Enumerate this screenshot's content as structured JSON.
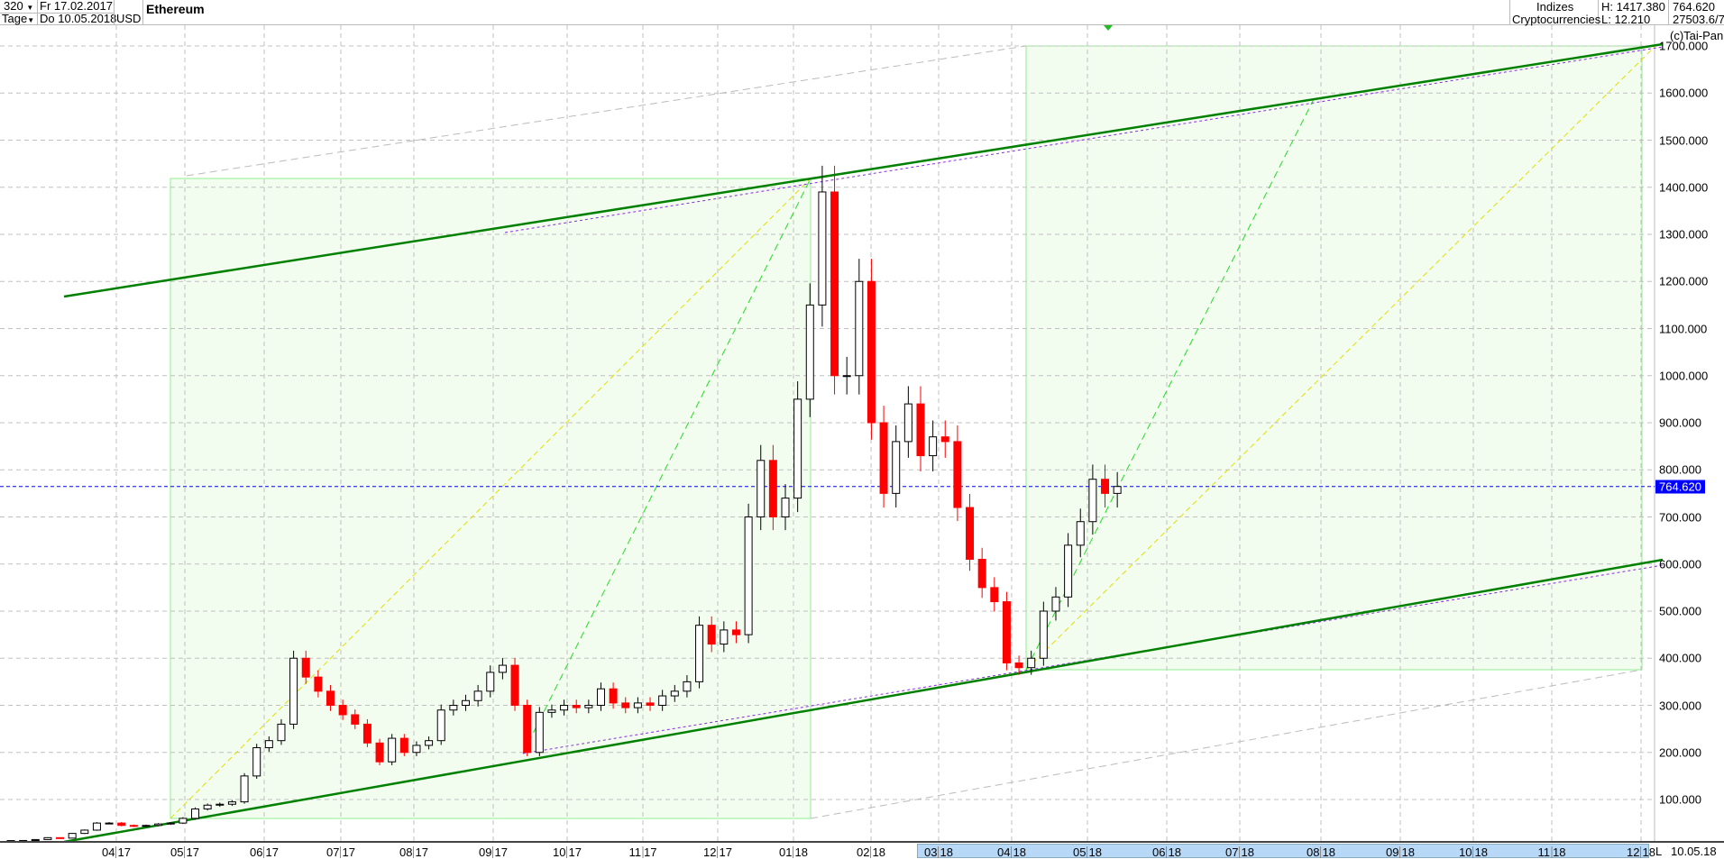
{
  "header": {
    "bar_count": "320",
    "period": "Tage",
    "start_date": "Fr 17.02.2017",
    "end_date": "Do 10.05.2018",
    "currency": "USD",
    "title": "Ethereum",
    "category_line1": "Indizes",
    "category_line2": "Cryptocurrencies",
    "high": "H: 1417.380",
    "low": "L: 12.210",
    "last": "764.620",
    "extra": "27503.6/7",
    "copyright": "(c)Tai-Pan"
  },
  "axis": {
    "end_marker": "L",
    "end_date": "10.05.18"
  },
  "colors": {
    "up_candle": "#000000",
    "down_candle": "#ff0000",
    "channel": "#008000",
    "box_fill": "#f2fdf0",
    "box_border": "#90ee90",
    "last_price": "#0000ff"
  },
  "chart_data": {
    "type": "candlestick",
    "title": "Ethereum",
    "ylabel": "USD",
    "ylim": [
      0,
      1750
    ],
    "y_ticks": [
      "100.000",
      "200.000",
      "300.000",
      "400.000",
      "500.000",
      "600.000",
      "700.000",
      "800.000",
      "900.000",
      "1000.000",
      "1100.000",
      "1200.000",
      "1300.000",
      "1400.000",
      "1500.000",
      "1600.000",
      "1700.000"
    ],
    "x_ticks": [
      {
        "m": "04",
        "y": "17"
      },
      {
        "m": "05",
        "y": "17"
      },
      {
        "m": "06",
        "y": "17"
      },
      {
        "m": "07",
        "y": "17"
      },
      {
        "m": "08",
        "y": "17"
      },
      {
        "m": "09",
        "y": "17"
      },
      {
        "m": "10",
        "y": "17"
      },
      {
        "m": "11",
        "y": "17"
      },
      {
        "m": "12",
        "y": "17"
      },
      {
        "m": "01",
        "y": "18"
      },
      {
        "m": "02",
        "y": "18"
      },
      {
        "m": "03",
        "y": "18"
      },
      {
        "m": "04",
        "y": "18"
      },
      {
        "m": "05",
        "y": "18"
      },
      {
        "m": "06",
        "y": "18"
      },
      {
        "m": "07",
        "y": "18"
      },
      {
        "m": "08",
        "y": "18"
      },
      {
        "m": "09",
        "y": "18"
      },
      {
        "m": "10",
        "y": "18"
      },
      {
        "m": "11",
        "y": "18"
      },
      {
        "m": "12",
        "y": "18"
      }
    ],
    "grid": true,
    "start": "17.02.2017",
    "interval_days": 5,
    "closes": [
      12.8,
      13,
      15,
      19,
      18,
      28,
      35,
      50,
      50,
      45,
      43,
      45,
      48,
      50,
      60,
      80,
      88,
      90,
      95,
      150,
      210,
      225,
      260,
      400,
      360,
      330,
      300,
      280,
      260,
      220,
      180,
      230,
      200,
      215,
      225,
      290,
      300,
      310,
      330,
      370,
      385,
      300,
      200,
      285,
      290,
      300,
      295,
      300,
      335,
      305,
      295,
      305,
      300,
      320,
      330,
      350,
      470,
      430,
      460,
      450,
      700,
      820,
      700,
      740,
      950,
      1150,
      1390,
      1000,
      1000,
      1200,
      900,
      750,
      860,
      940,
      830,
      870,
      860,
      720,
      610,
      550,
      520,
      390,
      380,
      400,
      500,
      530,
      640,
      690,
      780,
      750,
      764.62
    ],
    "last_price": 764.62,
    "high": 1417.38,
    "low": 12.21
  }
}
